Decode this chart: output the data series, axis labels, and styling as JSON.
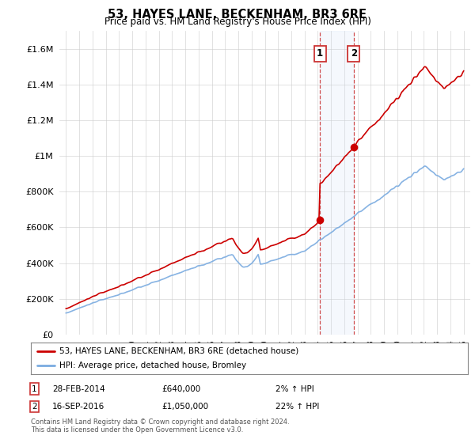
{
  "title": "53, HAYES LANE, BECKENHAM, BR3 6RE",
  "subtitle": "Price paid vs. HM Land Registry's House Price Index (HPI)",
  "legend_line1": "53, HAYES LANE, BECKENHAM, BR3 6RE (detached house)",
  "legend_line2": "HPI: Average price, detached house, Bromley",
  "sale1_date": "28-FEB-2014",
  "sale1_price": "£640,000",
  "sale1_hpi": "2% ↑ HPI",
  "sale1_year": 2014.16,
  "sale1_value": 640000,
  "sale2_date": "16-SEP-2016",
  "sale2_price": "£1,050,000",
  "sale2_hpi": "22% ↑ HPI",
  "sale2_year": 2016.71,
  "sale2_value": 1050000,
  "footnote1": "Contains HM Land Registry data © Crown copyright and database right 2024.",
  "footnote2": "This data is licensed under the Open Government Licence v3.0.",
  "red_color": "#cc0000",
  "blue_color": "#7aabe0",
  "highlight_color": "#ddeeff",
  "box_color": "#cc3333",
  "ylim_max": 1700000,
  "xlim_min": 1994.5,
  "xlim_max": 2025.5,
  "yticks": [
    0,
    200000,
    400000,
    600000,
    800000,
    1000000,
    1200000,
    1400000,
    1600000
  ],
  "background_color": "#ffffff"
}
